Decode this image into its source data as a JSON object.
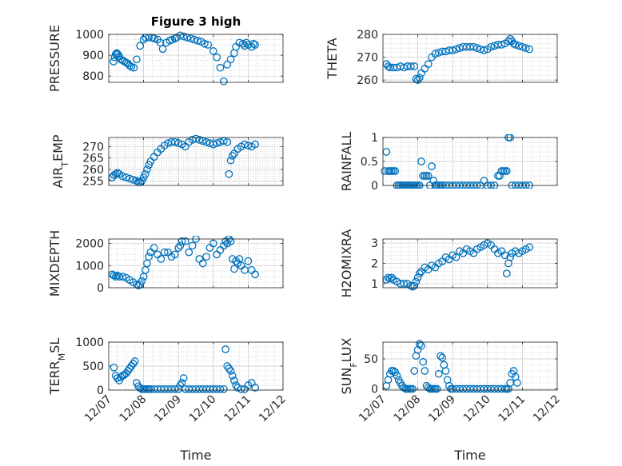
{
  "chart_data": [
    {
      "type": "scatter",
      "title": "Figure 3 high",
      "ylabel": "PRESSURE",
      "xlabel": "",
      "xlim": [
        0,
        5
      ],
      "ylim": [
        770,
        1000
      ],
      "yticks": [
        800,
        900,
        1000
      ],
      "yminor": [
        825,
        850,
        875,
        925,
        950,
        975
      ],
      "xtick_labels": [],
      "grid": true,
      "color": "#0072bd",
      "x": [
        0.14,
        0.17,
        0.2,
        0.23,
        0.26,
        0.3,
        0.35,
        0.4,
        0.45,
        0.5,
        0.55,
        0.6,
        0.65,
        0.72,
        0.8,
        0.9,
        1.0,
        1.05,
        1.15,
        1.25,
        1.3,
        1.4,
        1.48,
        1.55,
        1.65,
        1.75,
        1.82,
        1.9,
        1.95,
        2.05,
        2.15,
        2.25,
        2.35,
        2.45,
        2.55,
        2.65,
        2.75,
        2.85,
        3.0,
        3.1,
        3.2,
        3.3,
        3.4,
        3.5,
        3.6,
        3.65,
        3.75,
        3.85,
        3.9,
        3.95,
        4.0,
        4.1,
        4.15,
        4.2
      ],
      "y": [
        870,
        890,
        905,
        910,
        905,
        895,
        880,
        875,
        870,
        865,
        860,
        850,
        845,
        840,
        880,
        945,
        975,
        985,
        985,
        985,
        980,
        975,
        960,
        930,
        960,
        970,
        975,
        980,
        985,
        995,
        990,
        985,
        980,
        975,
        970,
        965,
        955,
        950,
        920,
        890,
        840,
        775,
        855,
        880,
        910,
        940,
        960,
        955,
        945,
        960,
        950,
        940,
        955,
        950
      ]
    },
    {
      "type": "scatter",
      "ylabel": "THETA",
      "xlabel": "",
      "xlim": [
        0,
        5
      ],
      "ylim": [
        259,
        280
      ],
      "yticks": [
        260,
        270,
        280
      ],
      "yminor": [
        262,
        264,
        266,
        268,
        272,
        274,
        276,
        278
      ],
      "xtick_labels": [],
      "grid": true,
      "color": "#0072bd",
      "x": [
        0.1,
        0.15,
        0.2,
        0.3,
        0.4,
        0.5,
        0.6,
        0.7,
        0.8,
        0.9,
        0.95,
        1.0,
        1.05,
        1.1,
        1.2,
        1.3,
        1.4,
        1.5,
        1.6,
        1.7,
        1.8,
        1.9,
        2.0,
        2.1,
        2.2,
        2.3,
        2.4,
        2.5,
        2.6,
        2.7,
        2.8,
        2.9,
        3.0,
        3.1,
        3.2,
        3.3,
        3.4,
        3.5,
        3.6,
        3.65,
        3.7,
        3.75,
        3.8,
        3.9,
        4.0,
        4.1,
        4.2
      ],
      "y": [
        267,
        266,
        265.5,
        265.5,
        265.5,
        266,
        265.5,
        266,
        266,
        266,
        260.5,
        260,
        261,
        263,
        265,
        267,
        270,
        271.5,
        272,
        272.5,
        272.5,
        273,
        273,
        273.5,
        274,
        274.5,
        274.5,
        274.5,
        274.5,
        274,
        273.5,
        273,
        273.5,
        274.5,
        275,
        275.5,
        275.5,
        276,
        277,
        278,
        277,
        276,
        275.5,
        275,
        274.5,
        274,
        273.5
      ]
    },
    {
      "type": "scatter",
      "ylabel": "AIR_TEMP",
      "ylabel_main": "AIR",
      "ylabel_sub": "T",
      "ylabel_rest": "EMP",
      "xlabel": "",
      "xlim": [
        0,
        5
      ],
      "ylim": [
        253,
        274
      ],
      "yticks": [
        255,
        260,
        265,
        270
      ],
      "yminor": [
        256,
        257,
        258,
        259,
        261,
        262,
        263,
        264,
        266,
        267,
        268,
        269,
        271,
        272,
        273
      ],
      "xtick_labels": [],
      "grid": true,
      "color": "#0072bd",
      "x": [
        0.1,
        0.15,
        0.2,
        0.25,
        0.3,
        0.4,
        0.5,
        0.6,
        0.7,
        0.8,
        0.85,
        0.9,
        0.95,
        1.0,
        1.05,
        1.1,
        1.15,
        1.2,
        1.3,
        1.4,
        1.5,
        1.6,
        1.7,
        1.8,
        1.9,
        2.0,
        2.1,
        2.2,
        2.3,
        2.4,
        2.5,
        2.6,
        2.7,
        2.8,
        2.9,
        3.0,
        3.1,
        3.2,
        3.3,
        3.4,
        3.45,
        3.5,
        3.55,
        3.6,
        3.7,
        3.8,
        3.9,
        4.0,
        4.1,
        4.2
      ],
      "y": [
        256.5,
        257.5,
        258,
        258.5,
        258,
        257,
        256.5,
        256,
        255.5,
        255,
        254.5,
        254.5,
        255,
        256.5,
        258,
        260,
        262,
        263.5,
        265.5,
        267.5,
        269,
        270.5,
        271.5,
        272,
        272,
        271.5,
        271,
        270,
        272,
        273,
        273.5,
        273,
        272.5,
        272,
        271.5,
        271,
        271.5,
        272,
        272.5,
        272,
        258,
        264,
        266,
        267,
        269,
        270,
        271,
        270.5,
        270,
        271
      ]
    },
    {
      "type": "scatter",
      "ylabel": "RAINFALL",
      "xlabel": "",
      "xlim": [
        0,
        5
      ],
      "ylim": [
        0,
        1
      ],
      "yticks": [
        0,
        0.5,
        1
      ],
      "yminor": [
        0.1,
        0.2,
        0.3,
        0.4,
        0.6,
        0.7,
        0.8,
        0.9
      ],
      "xtick_labels": [],
      "grid": true,
      "color": "#0072bd",
      "x": [
        0.05,
        0.1,
        0.15,
        0.2,
        0.25,
        0.3,
        0.35,
        0.4,
        0.45,
        0.5,
        0.55,
        0.6,
        0.65,
        0.7,
        0.75,
        0.8,
        0.85,
        0.9,
        0.95,
        1.0,
        1.05,
        1.1,
        1.15,
        1.2,
        1.25,
        1.3,
        1.35,
        1.4,
        1.45,
        1.5,
        1.55,
        1.6,
        1.65,
        1.7,
        1.8,
        1.9,
        2.0,
        2.1,
        2.2,
        2.3,
        2.4,
        2.5,
        2.6,
        2.7,
        2.8,
        2.9,
        3.0,
        3.1,
        3.2,
        3.3,
        3.35,
        3.4,
        3.45,
        3.5,
        3.55,
        3.6,
        3.65,
        3.7,
        3.8,
        3.9,
        4.0,
        4.1,
        4.2
      ],
      "y": [
        0.3,
        0.7,
        0.3,
        0.3,
        0.3,
        0.3,
        0.3,
        0,
        0,
        0,
        0,
        0,
        0,
        0,
        0,
        0,
        0,
        0,
        0,
        0,
        0,
        0.5,
        0.2,
        0.2,
        0.2,
        0.2,
        0,
        0.4,
        0.1,
        0,
        0,
        0,
        0,
        0,
        0,
        0,
        0,
        0,
        0,
        0,
        0,
        0,
        0,
        0,
        0,
        0.1,
        0,
        0,
        0,
        0.2,
        0.2,
        0.3,
        0.3,
        0.3,
        0.3,
        1.0,
        1.0,
        0,
        0,
        0,
        0,
        0,
        0
      ]
    },
    {
      "type": "scatter",
      "ylabel": "MIXDEPTH",
      "xlabel": "",
      "xlim": [
        0,
        5
      ],
      "ylim": [
        0,
        2200
      ],
      "yticks": [
        0,
        1000,
        2000
      ],
      "yminor": [
        250,
        500,
        750,
        1250,
        1500,
        1750
      ],
      "xtick_labels": [],
      "grid": true,
      "color": "#0072bd",
      "x": [
        0.1,
        0.15,
        0.2,
        0.25,
        0.3,
        0.4,
        0.5,
        0.6,
        0.7,
        0.8,
        0.85,
        0.9,
        0.95,
        1.0,
        1.05,
        1.1,
        1.15,
        1.2,
        1.3,
        1.4,
        1.5,
        1.6,
        1.7,
        1.8,
        1.9,
        2.0,
        2.05,
        2.1,
        2.2,
        2.3,
        2.4,
        2.5,
        2.6,
        2.7,
        2.8,
        2.9,
        3.0,
        3.1,
        3.2,
        3.3,
        3.35,
        3.4,
        3.45,
        3.5,
        3.55,
        3.6,
        3.65,
        3.7,
        3.75,
        3.8,
        3.9,
        4.0,
        4.1,
        4.2
      ],
      "y": [
        600,
        550,
        500,
        550,
        500,
        500,
        450,
        350,
        250,
        150,
        100,
        150,
        300,
        500,
        800,
        1100,
        1400,
        1600,
        1800,
        1500,
        1300,
        1600,
        1600,
        1400,
        1500,
        1800,
        1900,
        2100,
        2100,
        1600,
        1900,
        2200,
        1300,
        1100,
        1400,
        1800,
        2000,
        1500,
        1700,
        1900,
        2100,
        2000,
        2200,
        2100,
        1300,
        850,
        1200,
        1100,
        1300,
        1000,
        800,
        1200,
        800,
        600
      ]
    },
    {
      "type": "scatter",
      "ylabel": "H2OMIXRA",
      "xlabel": "",
      "xlim": [
        0,
        5
      ],
      "ylim": [
        0.8,
        3.2
      ],
      "yticks": [
        1,
        2,
        3
      ],
      "yminor": [
        1.2,
        1.4,
        1.6,
        1.8,
        2.2,
        2.4,
        2.6,
        2.8
      ],
      "xtick_labels": [],
      "grid": true,
      "color": "#0072bd",
      "x": [
        0.1,
        0.15,
        0.2,
        0.25,
        0.3,
        0.4,
        0.5,
        0.6,
        0.7,
        0.8,
        0.85,
        0.9,
        0.95,
        1.0,
        1.05,
        1.1,
        1.2,
        1.3,
        1.4,
        1.5,
        1.6,
        1.7,
        1.8,
        1.9,
        2.0,
        2.1,
        2.2,
        2.3,
        2.4,
        2.5,
        2.6,
        2.7,
        2.8,
        2.9,
        3.0,
        3.1,
        3.2,
        3.3,
        3.4,
        3.5,
        3.55,
        3.6,
        3.65,
        3.7,
        3.8,
        3.9,
        4.0,
        4.1,
        4.2
      ],
      "y": [
        1.2,
        1.3,
        1.25,
        1.3,
        1.2,
        1.1,
        1.0,
        1.0,
        1.0,
        0.9,
        0.85,
        0.9,
        1.1,
        1.3,
        1.5,
        1.6,
        1.8,
        1.7,
        1.9,
        1.8,
        2.0,
        2.1,
        2.3,
        2.2,
        2.4,
        2.3,
        2.6,
        2.5,
        2.7,
        2.6,
        2.5,
        2.7,
        2.8,
        2.9,
        3.0,
        2.9,
        2.7,
        2.5,
        2.6,
        2.4,
        1.5,
        2.0,
        2.3,
        2.5,
        2.6,
        2.5,
        2.6,
        2.7,
        2.8
      ]
    },
    {
      "type": "scatter",
      "ylabel": "TERR_MSL",
      "ylabel_main": "TERR",
      "ylabel_sub": "M",
      "ylabel_rest": "SL",
      "xlabel": "Time",
      "xlim": [
        0,
        5
      ],
      "ylim": [
        0,
        1000
      ],
      "yticks": [
        0,
        500,
        1000
      ],
      "yminor": [
        100,
        200,
        300,
        400,
        600,
        700,
        800,
        900
      ],
      "xtick_labels": [
        "12/07",
        "12/08",
        "12/09",
        "12/10",
        "12/11",
        "12/12"
      ],
      "grid": true,
      "color": "#0072bd",
      "x": [
        0.15,
        0.2,
        0.25,
        0.3,
        0.35,
        0.4,
        0.45,
        0.5,
        0.55,
        0.6,
        0.65,
        0.7,
        0.75,
        0.8,
        0.85,
        0.9,
        0.95,
        1.0,
        1.05,
        1.1,
        1.15,
        1.2,
        1.3,
        1.4,
        1.5,
        1.6,
        1.7,
        1.8,
        1.9,
        2.0,
        2.05,
        2.1,
        2.15,
        2.2,
        2.3,
        2.4,
        2.5,
        2.6,
        2.7,
        2.8,
        2.9,
        3.0,
        3.1,
        3.2,
        3.3,
        3.35,
        3.4,
        3.45,
        3.5,
        3.55,
        3.6,
        3.65,
        3.7,
        3.8,
        3.9,
        4.0,
        4.1,
        4.2
      ],
      "y": [
        470,
        300,
        250,
        200,
        270,
        300,
        320,
        350,
        400,
        450,
        500,
        550,
        600,
        150,
        80,
        40,
        20,
        20,
        20,
        20,
        20,
        20,
        20,
        20,
        20,
        20,
        20,
        20,
        20,
        20,
        100,
        150,
        250,
        20,
        20,
        20,
        20,
        20,
        20,
        20,
        20,
        20,
        20,
        20,
        20,
        850,
        500,
        450,
        400,
        300,
        200,
        100,
        50,
        20,
        20,
        100,
        150,
        50
      ]
    },
    {
      "type": "scatter",
      "ylabel": "SUN_FLUX",
      "ylabel_main": "SUN",
      "ylabel_sub": "F",
      "ylabel_rest": "LUX",
      "xlabel": "Time",
      "xlim": [
        0,
        5
      ],
      "ylim": [
        -2,
        78
      ],
      "yticks": [
        0,
        50
      ],
      "yminor": [
        10,
        20,
        30,
        40,
        60,
        70
      ],
      "xtick_labels": [
        "12/07",
        "12/08",
        "12/09",
        "12/10",
        "12/11",
        "12/12"
      ],
      "grid": true,
      "color": "#0072bd",
      "x": [
        0.1,
        0.15,
        0.2,
        0.25,
        0.3,
        0.35,
        0.4,
        0.45,
        0.5,
        0.55,
        0.6,
        0.65,
        0.7,
        0.75,
        0.8,
        0.85,
        0.9,
        0.95,
        1.0,
        1.05,
        1.1,
        1.15,
        1.2,
        1.25,
        1.3,
        1.35,
        1.4,
        1.45,
        1.5,
        1.55,
        1.6,
        1.65,
        1.7,
        1.75,
        1.8,
        1.85,
        1.9,
        1.95,
        2.0,
        2.1,
        2.2,
        2.3,
        2.4,
        2.5,
        2.6,
        2.7,
        2.8,
        2.9,
        3.0,
        3.1,
        3.2,
        3.3,
        3.4,
        3.5,
        3.55,
        3.6,
        3.65,
        3.7,
        3.75,
        3.8,
        3.85
      ],
      "y": [
        5,
        15,
        25,
        30,
        30,
        28,
        22,
        15,
        10,
        5,
        2,
        0,
        0,
        0,
        0,
        0,
        30,
        55,
        65,
        75,
        72,
        45,
        30,
        5,
        2,
        0,
        0,
        0,
        0,
        0,
        25,
        55,
        52,
        40,
        30,
        15,
        5,
        0,
        0,
        0,
        0,
        0,
        0,
        0,
        0,
        0,
        0,
        0,
        0,
        0,
        0,
        0,
        0,
        0,
        0,
        0,
        10,
        25,
        30,
        20,
        10
      ]
    }
  ]
}
